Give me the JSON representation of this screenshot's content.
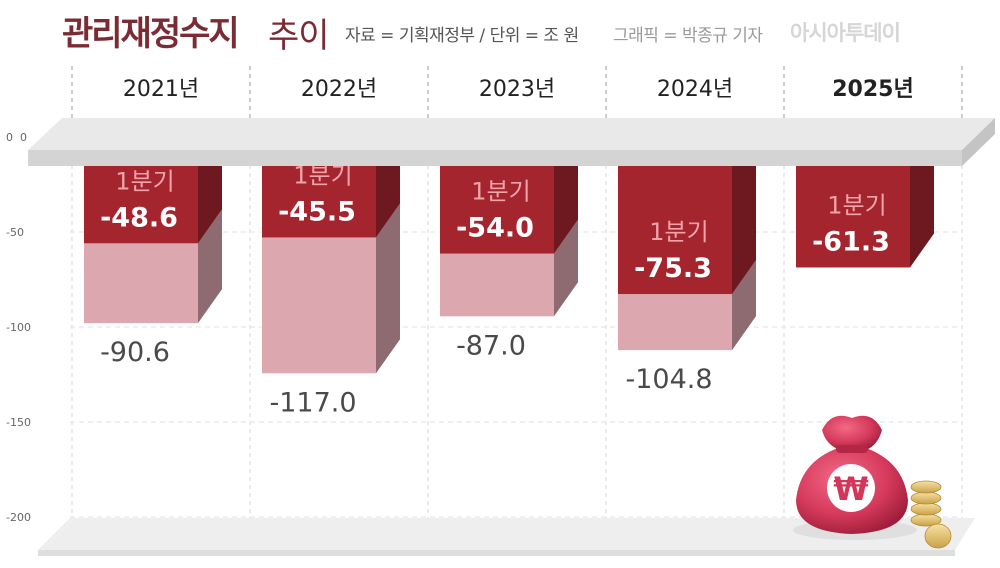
{
  "header": {
    "title_bold": "관리재정수지",
    "title_light": "추이",
    "source": "자료 = 기획재정부 / 단위 = 조 원",
    "credit": "그래픽 = 박종규 기자",
    "logo": "아시아투데이"
  },
  "chart_data": {
    "type": "bar",
    "title": "관리재정수지 추이",
    "unit": "조 원",
    "categories": [
      "2021년",
      "2022년",
      "2023년",
      "2024년",
      "2025년"
    ],
    "y_ticks": [
      0,
      -50,
      -100,
      -150,
      -200
    ],
    "ylim": [
      -200,
      0
    ],
    "grid": true,
    "series": [
      {
        "name": "1분기",
        "values": [
          -48.6,
          -45.5,
          -54.0,
          -75.3,
          -61.3
        ],
        "labels": [
          "-48.6",
          "-45.5",
          "-54.0",
          "-75.3",
          "-61.3"
        ]
      },
      {
        "values": [
          -90.6,
          -117.0,
          -87.0,
          -104.8,
          null
        ],
        "labels": [
          "-90.6",
          "-117.0",
          "-87.0",
          "-104.8",
          ""
        ]
      }
    ],
    "highlight_category": "2025년",
    "colors": {
      "q1": "#a5252f",
      "q1_side": "#6e1820",
      "annual": "#dca7ae",
      "annual_side": "#8e6a71",
      "floor": "#d9d9d9",
      "tick": "#666666",
      "value": "#4a4a4a"
    }
  },
  "decoration": {
    "money_bag_symbol": "₩"
  }
}
